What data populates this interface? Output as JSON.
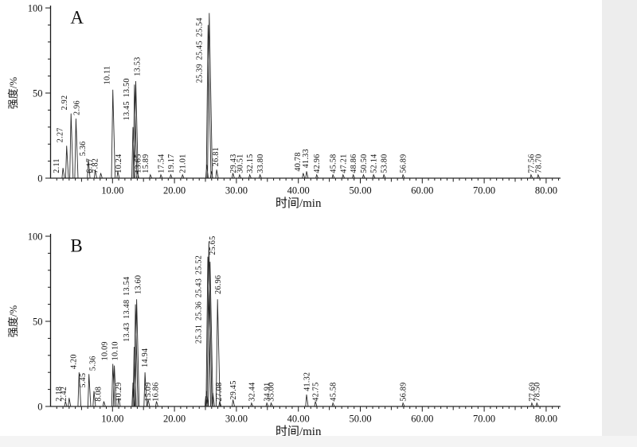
{
  "page": {
    "background": "#ffffff",
    "edge_shade": "#ededed"
  },
  "style": {
    "axis_color": "#1a1a1a",
    "trace_color": "#2b2b2b",
    "text_color": "#111111"
  },
  "chart_data": [
    {
      "type": "line",
      "panel_label": "A",
      "xlabel": "时间/min",
      "ylabel": "强度/%",
      "xlim": [
        0,
        82.3
      ],
      "ylim": [
        0,
        100
      ],
      "x_ticks": [
        {
          "v": 10,
          "label": "10.00"
        },
        {
          "v": 20,
          "label": "20.00"
        },
        {
          "v": 30,
          "label": "30.00"
        },
        {
          "v": 40,
          "label": "40.00"
        },
        {
          "v": 50,
          "label": "50.00"
        },
        {
          "v": 60,
          "label": "60.00"
        },
        {
          "v": 70,
          "label": "70.00"
        },
        {
          "v": 80,
          "label": "80.00"
        }
      ],
      "y_ticks": [
        {
          "v": 0,
          "label": "0"
        },
        {
          "v": 50,
          "label": "50"
        },
        {
          "v": 100,
          "label": "100"
        }
      ],
      "peaks": [
        {
          "t": 2.11,
          "tx": 2.0,
          "h": 6,
          "label": "2.11",
          "lh": 2,
          "dx": -5
        },
        {
          "t": 2.27,
          "tx": 2.6,
          "h": 19,
          "label": "2.27",
          "lh": 20,
          "dx": -5
        },
        {
          "t": 2.92,
          "tx": 3.3,
          "h": 38,
          "label": "2.92",
          "lh": 39,
          "dx": -5
        },
        {
          "t": 2.96,
          "tx": 4.1,
          "h": 35,
          "label": "2.96",
          "lh": 36,
          "dx": 4
        },
        {
          "t": 5.36,
          "tx": 6.1,
          "h": 11,
          "label": "5.36",
          "lh": 12,
          "dx": -4
        },
        {
          "t": 6.17,
          "tx": 7.2,
          "h": 5,
          "label": "6.17",
          "lh": 2,
          "dx": -4
        },
        {
          "t": 7.82,
          "tx": 8.1,
          "h": 3,
          "label": "7.82",
          "lh": 2,
          "dx": -4
        },
        {
          "t": 10.11,
          "tx": 10.05,
          "h": 52,
          "label": "10.11",
          "lh": 54,
          "dx": -4
        },
        {
          "t": 10.24,
          "tx": 10.85,
          "h": 4,
          "label": "10.24",
          "lh": 2,
          "dx": 4
        },
        {
          "t": 13.45,
          "tx": 13.3,
          "h": 30,
          "label": "13.45 13.50",
          "lh": 33,
          "dx": -5
        },
        {
          "t": 13.5,
          "tx": 13.55,
          "h": 55
        },
        {
          "t": 13.53,
          "tx": 13.75,
          "h": 57,
          "label": "13.53",
          "lh": 59,
          "dx": 5
        },
        {
          "t": 13.65,
          "tx": 14.0,
          "h": 4,
          "label": "13.65",
          "lh": 2,
          "dx": 4
        },
        {
          "t": 15.89,
          "tx": 16.1,
          "h": 2,
          "label": "15.89",
          "lh": 2,
          "dx": -3
        },
        {
          "t": 17.54,
          "tx": 17.8,
          "h": 2,
          "label": "17.54",
          "lh": 2
        },
        {
          "t": 19.17,
          "tx": 19.4,
          "h": 2,
          "label": "19.17",
          "lh": 2
        },
        {
          "t": 21.01,
          "tx": 21.3,
          "h": 2,
          "label": "21.01",
          "lh": 2
        },
        {
          "t": 25.39,
          "tx": 25.2,
          "h": 8,
          "label": "25.39 25.45 25.54",
          "lh": 55,
          "dx": -6
        },
        {
          "t": 25.45,
          "tx": 25.42,
          "h": 90
        },
        {
          "t": 25.54,
          "tx": 25.62,
          "h": 97
        },
        {
          "t": 25.95,
          "h": 4
        },
        {
          "t": 26.81,
          "h": 5,
          "label": "26.81",
          "lh": 6,
          "dx": 2
        },
        {
          "t": 29.43,
          "h": 3,
          "label": "29.43",
          "lh": 2
        },
        {
          "t": 30.51,
          "h": 2,
          "label": "30.51",
          "lh": 2
        },
        {
          "t": 32.15,
          "h": 2,
          "label": "32.15",
          "lh": 2
        },
        {
          "t": 33.8,
          "h": 2,
          "label": "33.80",
          "lh": 2
        },
        {
          "t": 40.78,
          "h": 3,
          "label": "40.78",
          "lh": 3,
          "dx": -4
        },
        {
          "t": 41.33,
          "h": 4,
          "label": "41.33",
          "lh": 5,
          "dx": 2
        },
        {
          "t": 42.96,
          "h": 2,
          "label": "42.96",
          "lh": 2
        },
        {
          "t": 45.58,
          "h": 2,
          "label": "45.58",
          "lh": 2
        },
        {
          "t": 47.21,
          "h": 2,
          "label": "47.21",
          "lh": 2
        },
        {
          "t": 48.86,
          "h": 2,
          "label": "48.86",
          "lh": 2
        },
        {
          "t": 50.5,
          "h": 2,
          "label": "50.50",
          "lh": 2
        },
        {
          "t": 52.14,
          "h": 2,
          "label": "52.14",
          "lh": 2
        },
        {
          "t": 53.8,
          "h": 2,
          "label": "53.80",
          "lh": 2
        },
        {
          "t": 56.89,
          "h": 2,
          "label": "56.89",
          "lh": 2
        },
        {
          "t": 77.56,
          "h": 2,
          "label": "77.56",
          "lh": 2
        },
        {
          "t": 78.7,
          "h": 2,
          "label": "78.70",
          "lh": 2
        }
      ]
    },
    {
      "type": "line",
      "panel_label": "B",
      "xlabel": "时间/min",
      "ylabel": "强度/%",
      "xlim": [
        0,
        82.3
      ],
      "ylim": [
        0,
        100
      ],
      "x_ticks": [
        {
          "v": 10,
          "label": "10.00"
        },
        {
          "v": 20,
          "label": "20.00"
        },
        {
          "v": 30,
          "label": "30.00"
        },
        {
          "v": 40,
          "label": "40.00"
        },
        {
          "v": 50,
          "label": "50.00"
        },
        {
          "v": 60,
          "label": "60.00"
        },
        {
          "v": 70,
          "label": "70.00"
        },
        {
          "v": 80,
          "label": "80.00"
        }
      ],
      "y_ticks": [
        {
          "v": 0,
          "label": "0"
        },
        {
          "v": 50,
          "label": "50"
        },
        {
          "v": 100,
          "label": "100"
        }
      ],
      "peaks": [
        {
          "t": 2.18,
          "tx": 2.4,
          "h": 3,
          "label": "2.18",
          "lh": 2,
          "dx": -5
        },
        {
          "t": 2.42,
          "tx": 3.0,
          "h": 5,
          "label": "2.42",
          "lh": 2,
          "dx": -4
        },
        {
          "t": 4.2,
          "tx": 4.6,
          "h": 20,
          "label": "4.20",
          "lh": 21,
          "dx": -4
        },
        {
          "t": 5.36,
          "tx": 6.2,
          "h": 19,
          "label": "5.36",
          "lh": 20,
          "dx": 8
        },
        {
          "t": 5.45,
          "tx": 7.0,
          "h": 9,
          "label": "5.45",
          "lh": 10,
          "dx": -11
        },
        {
          "t": 8.08,
          "tx": 8.6,
          "h": 3,
          "label": "8.08",
          "lh": 2,
          "dx": -4
        },
        {
          "t": 10.09,
          "tx": 10.05,
          "h": 25,
          "label": "10.09",
          "lh": 26,
          "dx": -7
        },
        {
          "t": 10.1,
          "tx": 10.3,
          "h": 24,
          "label": "10.10",
          "lh": 26,
          "dx": 4
        },
        {
          "t": 10.29,
          "tx": 11.0,
          "h": 5,
          "label": "10.29",
          "lh": 2,
          "dx": 3
        },
        {
          "t": 13.43,
          "tx": 13.3,
          "h": 14,
          "label": "13.43 13.48 13.54",
          "lh": 37,
          "dx": -5
        },
        {
          "t": 13.48,
          "tx": 13.5,
          "h": 35
        },
        {
          "t": 13.54,
          "tx": 13.7,
          "h": 60
        },
        {
          "t": 13.6,
          "tx": 13.9,
          "h": 63,
          "label": "13.60",
          "lh": 65,
          "dx": 5
        },
        {
          "t": 14.94,
          "tx": 15.25,
          "h": 20,
          "label": "14.94",
          "lh": 22,
          "dx": 3
        },
        {
          "t": 15.09,
          "tx": 15.75,
          "h": 4,
          "label": "15.09",
          "lh": 2,
          "dx": 3
        },
        {
          "t": 16.86,
          "tx": 17.1,
          "h": 3,
          "label": "16.86",
          "lh": 2,
          "dx": 2
        },
        {
          "t": 25.31,
          "tx": 25.05,
          "h": 6,
          "label": "25.31 25.36 25.43 25.52",
          "lh": 36,
          "dx": -6
        },
        {
          "t": 25.36,
          "tx": 25.2,
          "h": 9
        },
        {
          "t": 25.43,
          "tx": 25.38,
          "h": 88
        },
        {
          "t": 25.52,
          "tx": 25.55,
          "h": 97
        },
        {
          "t": 25.65,
          "tx": 25.75,
          "h": 85,
          "label": "25.65",
          "lh": 88,
          "dx": 6
        },
        {
          "t": 26.2,
          "h": 8
        },
        {
          "t": 26.96,
          "h": 63,
          "label": "26.96",
          "lh": 65,
          "dx": 4
        },
        {
          "t": 27.08,
          "tx": 27.3,
          "h": 3,
          "label": "27.08",
          "lh": 2,
          "dx": 2
        },
        {
          "t": 29.45,
          "h": 4,
          "label": "29.45",
          "lh": 3
        },
        {
          "t": 32.44,
          "h": 2,
          "label": "32.44",
          "lh": 2
        },
        {
          "t": 34.91,
          "h": 2,
          "label": "34.91",
          "lh": 2
        },
        {
          "t": 35.0,
          "tx": 35.6,
          "h": 2,
          "label": "35.00",
          "lh": 2,
          "dx": 3
        },
        {
          "t": 41.32,
          "h": 7,
          "label": "41.32",
          "lh": 8
        },
        {
          "t": 42.75,
          "h": 3,
          "label": "42.75",
          "lh": 2
        },
        {
          "t": 45.58,
          "h": 2,
          "label": "45.58",
          "lh": 2
        },
        {
          "t": 56.89,
          "h": 2,
          "label": "56.89",
          "lh": 2
        },
        {
          "t": 77.69,
          "h": 2,
          "label": "77.69",
          "lh": 2
        },
        {
          "t": 78.5,
          "h": 2,
          "label": "78.50",
          "lh": 2
        }
      ]
    }
  ]
}
